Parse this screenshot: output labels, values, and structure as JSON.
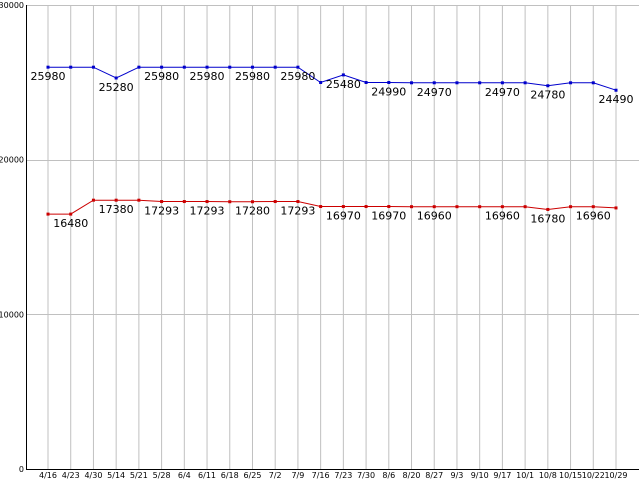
{
  "chart_data": {
    "type": "line",
    "title": "",
    "xlabel": "",
    "ylabel": "",
    "ylim": [
      0,
      30000
    ],
    "yticks": [
      0,
      10000,
      20000,
      30000
    ],
    "grid": true,
    "legend": "none",
    "categories": [
      "4/16",
      "4/23",
      "4/30",
      "5/14",
      "5/21",
      "5/28",
      "6/4",
      "6/11",
      "6/18",
      "6/25",
      "7/2",
      "7/9",
      "7/16",
      "7/23",
      "7/30",
      "8/6",
      "8/20",
      "8/27",
      "9/3",
      "9/10",
      "9/17",
      "10/1",
      "10/8",
      "10/15",
      "10/22",
      "10/29"
    ],
    "series": [
      {
        "color": "#0000cc",
        "values": [
          25980,
          25980,
          25980,
          25280,
          25980,
          25980,
          25980,
          25980,
          25980,
          25980,
          25980,
          25980,
          24990,
          25480,
          24990,
          24990,
          24970,
          24970,
          24970,
          24970,
          24970,
          24970,
          24780,
          24970,
          24970,
          24490
        ],
        "labels": [
          "25980",
          "",
          "",
          "25280",
          "",
          "25980",
          "",
          "25980",
          "",
          "25980",
          "",
          "25980",
          "",
          "25480",
          "",
          "24990",
          "",
          "24970",
          "",
          "",
          "24970",
          "",
          "24780",
          "",
          "",
          "24490"
        ]
      },
      {
        "color": "#cc0000",
        "values": [
          16480,
          16480,
          17380,
          17380,
          17380,
          17293,
          17293,
          17293,
          17280,
          17280,
          17293,
          17293,
          16970,
          16970,
          16970,
          16970,
          16960,
          16960,
          16960,
          16960,
          16960,
          16960,
          16780,
          16960,
          16960,
          16880
        ],
        "labels": [
          "",
          "16480",
          "",
          "17380",
          "",
          "17293",
          "",
          "17293",
          "",
          "17280",
          "",
          "17293",
          "",
          "16970",
          "",
          "16970",
          "",
          "16960",
          "",
          "",
          "16960",
          "",
          "16780",
          "",
          "16960",
          ""
        ]
      }
    ]
  }
}
